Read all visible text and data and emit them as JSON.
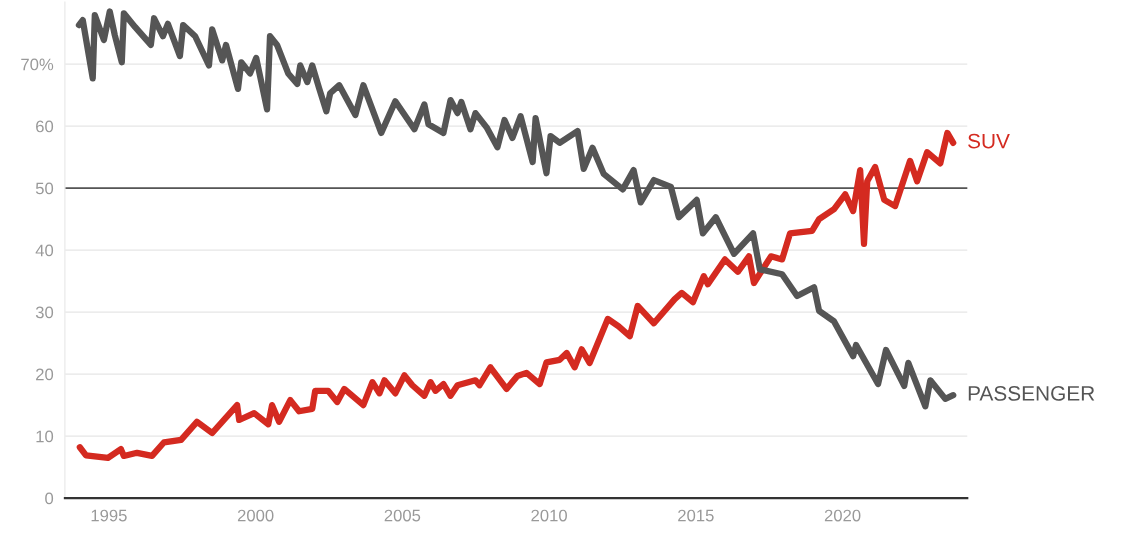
{
  "chart_data": {
    "type": "line",
    "xlim": [
      1993.5,
      2024.25
    ],
    "xticks": [
      1995,
      2000,
      2005,
      2010,
      2015,
      2020
    ],
    "ylim": [
      0,
      80
    ],
    "yticks": [
      0,
      10,
      20,
      30,
      40,
      50,
      60,
      {
        "value": 70,
        "label": "70%"
      }
    ],
    "grid": "y",
    "legend": false,
    "marker": "none",
    "line_style": "solid",
    "ref_lines": [
      {
        "axis": "y",
        "value": 50,
        "label": null,
        "color": "#555555"
      }
    ],
    "series": [
      {
        "name": "SUV",
        "color": "#d42a20",
        "x": [
          1994.01,
          1994.22,
          1994.97,
          1995.41,
          1995.51,
          1995.96,
          1996.47,
          1996.88,
          1997.46,
          1998.0,
          1998.52,
          1999.37,
          1999.44,
          1999.95,
          2000.43,
          2000.56,
          2000.8,
          2001.18,
          2001.48,
          2001.93,
          2002.03,
          2002.47,
          2002.78,
          2003.02,
          2003.67,
          2003.98,
          2004.22,
          2004.39,
          2004.76,
          2005.07,
          2005.34,
          2005.75,
          2005.96,
          2006.13,
          2006.4,
          2006.64,
          2006.88,
          2007.49,
          2007.63,
          2008.0,
          2008.55,
          2008.92,
          2009.23,
          2009.68,
          2009.91,
          2010.36,
          2010.6,
          2010.87,
          2011.11,
          2011.38,
          2012.0,
          2012.37,
          2012.75,
          2013.02,
          2013.57,
          2014.28,
          2014.52,
          2014.9,
          2015.27,
          2015.41,
          2015.99,
          2016.43,
          2016.81,
          2016.98,
          2017.56,
          2017.94,
          2018.21,
          2018.96,
          2019.2,
          2019.71,
          2020.09,
          2020.36,
          2020.6,
          2020.73,
          2020.84,
          2021.11,
          2021.42,
          2021.79,
          2022.3,
          2022.54,
          2022.88,
          2023.33,
          2023.57,
          2023.77
        ],
        "values": [
          8.2,
          6.9,
          6.5,
          7.9,
          6.8,
          7.3,
          6.8,
          9.0,
          9.4,
          12.3,
          10.5,
          15.0,
          12.6,
          13.7,
          11.9,
          15.0,
          12.3,
          15.8,
          14.0,
          14.4,
          17.3,
          17.3,
          15.5,
          17.6,
          15.0,
          18.7,
          16.9,
          19.0,
          16.9,
          19.8,
          18.2,
          16.5,
          18.7,
          17.3,
          18.4,
          16.5,
          18.2,
          19.0,
          18.2,
          21.1,
          17.6,
          19.7,
          20.2,
          18.4,
          21.9,
          22.3,
          23.4,
          21.1,
          24.0,
          21.8,
          28.9,
          27.7,
          26.1,
          31.0,
          28.2,
          32.1,
          33.1,
          31.6,
          35.8,
          34.5,
          38.5,
          36.5,
          39.0,
          34.7,
          39.0,
          38.5,
          42.7,
          43.1,
          45.0,
          46.6,
          49.0,
          46.3,
          52.9,
          41.0,
          51.1,
          53.4,
          48.1,
          47.1,
          54.4,
          51.1,
          55.8,
          54.0,
          58.9,
          57.3
        ]
      },
      {
        "name": "PASSENGER",
        "color": "#555555",
        "x": [
          1993.98,
          1994.11,
          1994.45,
          1994.52,
          1994.83,
          1995.03,
          1995.2,
          1995.44,
          1995.51,
          1995.89,
          1996.43,
          1996.54,
          1996.84,
          1997.01,
          1997.42,
          1997.53,
          1997.94,
          1998.41,
          1998.52,
          1998.86,
          1998.99,
          1999.4,
          1999.51,
          1999.81,
          2000.02,
          2000.39,
          2000.49,
          2000.73,
          2001.11,
          2001.42,
          2001.52,
          2001.76,
          2001.93,
          2002.17,
          2002.41,
          2002.54,
          2002.85,
          2003.4,
          2003.67,
          2004.28,
          2004.76,
          2005.41,
          2005.75,
          2005.89,
          2006.4,
          2006.64,
          2006.88,
          2007.01,
          2007.32,
          2007.49,
          2007.87,
          2008.24,
          2008.48,
          2008.75,
          2009.03,
          2009.44,
          2009.54,
          2009.91,
          2010.05,
          2010.36,
          2010.97,
          2011.18,
          2011.48,
          2011.86,
          2012.51,
          2012.88,
          2013.12,
          2013.57,
          2014.15,
          2014.42,
          2015.03,
          2015.24,
          2015.68,
          2016.3,
          2016.95,
          2017.18,
          2017.94,
          2018.45,
          2019.03,
          2019.2,
          2019.71,
          2020.36,
          2020.46,
          2021.21,
          2021.48,
          2022.1,
          2022.24,
          2022.82,
          2022.99,
          2023.5,
          2023.77
        ],
        "values": [
          76.3,
          77.1,
          67.7,
          77.9,
          73.9,
          78.5,
          74.7,
          70.3,
          78.2,
          76.0,
          73.1,
          77.4,
          74.5,
          76.5,
          71.3,
          76.3,
          74.5,
          69.8,
          75.6,
          70.6,
          73.1,
          66.0,
          70.3,
          68.5,
          71.0,
          62.7,
          74.5,
          73.1,
          68.5,
          66.8,
          69.8,
          67.1,
          69.8,
          66.0,
          62.4,
          65.3,
          66.6,
          61.8,
          66.6,
          58.9,
          64.0,
          59.5,
          63.5,
          60.3,
          58.9,
          64.2,
          62.1,
          63.9,
          59.5,
          62.1,
          59.8,
          56.6,
          61.0,
          58.1,
          61.6,
          54.2,
          61.3,
          52.4,
          58.4,
          57.3,
          59.2,
          53.1,
          56.5,
          52.3,
          49.8,
          52.9,
          47.7,
          51.3,
          50.2,
          45.3,
          48.1,
          42.7,
          45.3,
          39.4,
          42.7,
          36.9,
          36.1,
          32.6,
          34.0,
          30.2,
          28.5,
          22.9,
          24.7,
          18.4,
          23.9,
          18.1,
          21.8,
          14.8,
          19.0,
          16.0,
          16.6
        ]
      }
    ]
  }
}
